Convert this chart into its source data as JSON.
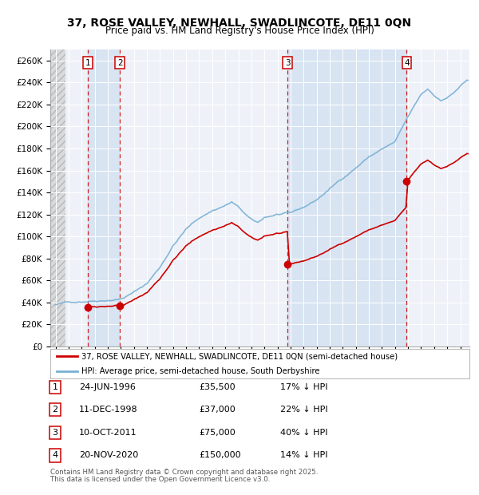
{
  "title": "37, ROSE VALLEY, NEWHALL, SWADLINCOTE, DE11 0QN",
  "subtitle": "Price paid vs. HM Land Registry's House Price Index (HPI)",
  "property_color": "#cc0000",
  "hpi_color": "#7ab0d4",
  "background_plot": "#eef2f8",
  "grid_color": "#ffffff",
  "sale_marker_color": "#cc0000",
  "vline_color": "#cc0000",
  "shade_color": "#d0dff0",
  "hatch_region_end": 1994.75,
  "ylim": [
    0,
    270000
  ],
  "yticks": [
    0,
    20000,
    40000,
    60000,
    80000,
    100000,
    120000,
    140000,
    160000,
    180000,
    200000,
    220000,
    240000,
    260000
  ],
  "ytick_labels": [
    "£0",
    "£20K",
    "£40K",
    "£60K",
    "£80K",
    "£100K",
    "£120K",
    "£140K",
    "£160K",
    "£180K",
    "£200K",
    "£220K",
    "£240K",
    "£260K"
  ],
  "xlim_start": 1993.6,
  "xlim_end": 2025.7,
  "xticks": [
    1994,
    1995,
    1996,
    1997,
    1998,
    1999,
    2000,
    2001,
    2002,
    2003,
    2004,
    2005,
    2006,
    2007,
    2008,
    2009,
    2010,
    2011,
    2012,
    2013,
    2014,
    2015,
    2016,
    2017,
    2018,
    2019,
    2020,
    2021,
    2022,
    2023,
    2024,
    2025
  ],
  "sales": [
    {
      "date": 1996.48,
      "price": 35500,
      "label": "1",
      "date_str": "24-JUN-1996",
      "pct": "17%"
    },
    {
      "date": 1998.94,
      "price": 37000,
      "label": "2",
      "date_str": "11-DEC-1998",
      "pct": "22%"
    },
    {
      "date": 2011.78,
      "price": 75000,
      "label": "3",
      "date_str": "10-OCT-2011",
      "pct": "40%"
    },
    {
      "date": 2020.9,
      "price": 150000,
      "label": "4",
      "date_str": "20-NOV-2020",
      "pct": "14%"
    }
  ],
  "legend_line1": "37, ROSE VALLEY, NEWHALL, SWADLINCOTE, DE11 0QN (semi-detached house)",
  "legend_line2": "HPI: Average price, semi-detached house, South Derbyshire",
  "footer1": "Contains HM Land Registry data © Crown copyright and database right 2025.",
  "footer2": "This data is licensed under the Open Government Licence v3.0."
}
